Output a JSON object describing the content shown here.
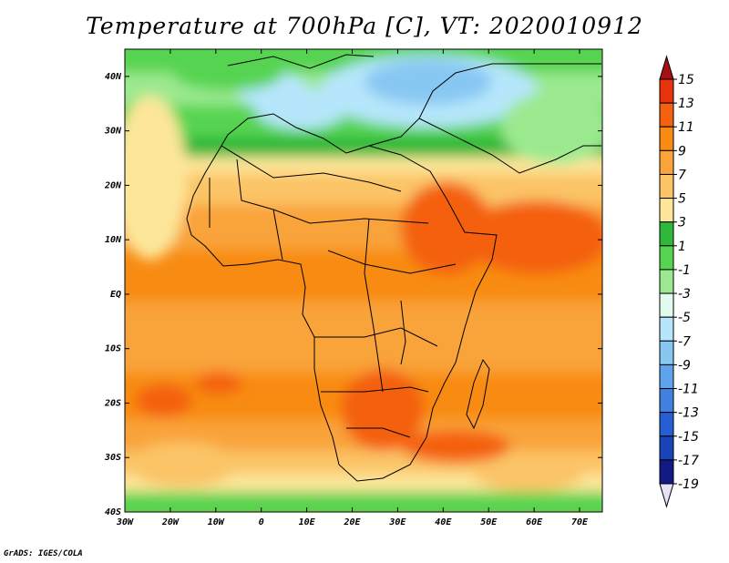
{
  "title": "Temperature at 700hPa [C], VT: 2020010912",
  "credit": "GrADS: IGES/COLA",
  "map": {
    "lon_range": [
      -30,
      75
    ],
    "lat_range": [
      -40,
      45
    ],
    "lon_ticks": [
      {
        "value": -30,
        "label": "30W"
      },
      {
        "value": -20,
        "label": "20W"
      },
      {
        "value": -10,
        "label": "10W"
      },
      {
        "value": 0,
        "label": "0"
      },
      {
        "value": 10,
        "label": "10E"
      },
      {
        "value": 20,
        "label": "20E"
      },
      {
        "value": 30,
        "label": "30E"
      },
      {
        "value": 40,
        "label": "40E"
      },
      {
        "value": 50,
        "label": "50E"
      },
      {
        "value": 60,
        "label": "60E"
      },
      {
        "value": 70,
        "label": "70E"
      }
    ],
    "lat_ticks": [
      {
        "value": 40,
        "label": "40N"
      },
      {
        "value": 30,
        "label": "30N"
      },
      {
        "value": 20,
        "label": "20N"
      },
      {
        "value": 10,
        "label": "10N"
      },
      {
        "value": 0,
        "label": "EQ"
      },
      {
        "value": -10,
        "label": "10S"
      },
      {
        "value": -20,
        "label": "20S"
      },
      {
        "value": -30,
        "label": "30S"
      },
      {
        "value": -40,
        "label": "40S"
      }
    ]
  },
  "colorbar": {
    "labels": [
      "15",
      "13",
      "11",
      "9",
      "7",
      "5",
      "3",
      "1",
      "-1",
      "-3",
      "-5",
      "-7",
      "-9",
      "-11",
      "-13",
      "-15",
      "-17",
      "-19"
    ],
    "colors": [
      "#a50f15",
      "#e8340c",
      "#f4610f",
      "#f88b12",
      "#f9a33a",
      "#fbc466",
      "#fde69a",
      "#2fb83a",
      "#56d451",
      "#9be98f",
      "#e1fbef",
      "#b6e6fb",
      "#87c8f3",
      "#5ea4ec",
      "#3f80e1",
      "#255fd3",
      "#1844b6",
      "#121a84",
      "#e6e0f8"
    ]
  }
}
